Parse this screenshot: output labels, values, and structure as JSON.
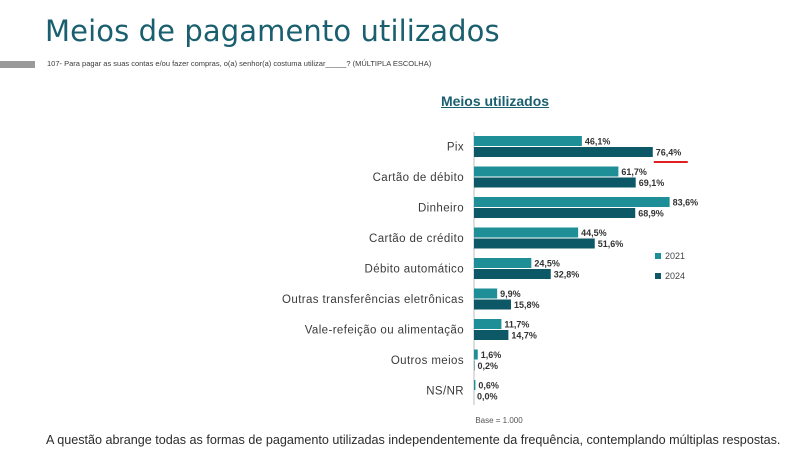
{
  "slide": {
    "title": "Meios de pagamento utilizados",
    "question": "107- Para pagar as suas contas e/ou fazer compras, o(a) senhor(a) costuma utilizar_____? (MÚLTIPLA ESCOLHA)",
    "base_note": "Base = 1.000",
    "footnote": "A questão abrange todas as formas de pagamento utilizadas independentemente da frequência, contemplando múltiplas respostas."
  },
  "colors": {
    "title": "#1a5f6f",
    "series_2021": "#1e8f96",
    "series_2024": "#0c5866",
    "highlight_underline": "#e02020",
    "accent_bar": "#9a9a9a"
  },
  "chart_data": {
    "type": "bar",
    "orientation": "horizontal",
    "title": "Meios utilizados",
    "categories": [
      "Pix",
      "Cartão de débito",
      "Dinheiro",
      "Cartão de crédito",
      "Débito automático",
      "Outras transferências eletrônicas",
      "Vale-refeição ou alimentação",
      "Outros meios",
      "NS/NR"
    ],
    "series": [
      {
        "name": "2021",
        "values": [
          46.1,
          61.7,
          83.6,
          44.5,
          24.5,
          9.9,
          11.7,
          1.6,
          0.6
        ],
        "labels": [
          "46,1%",
          "61,7%",
          "83,6%",
          "44,5%",
          "24,5%",
          "9,9%",
          "11,7%",
          "1,6%",
          "0,6%"
        ]
      },
      {
        "name": "2024",
        "values": [
          76.4,
          69.1,
          68.9,
          51.6,
          32.8,
          15.8,
          14.7,
          0.2,
          0.0
        ],
        "labels": [
          "76,4%",
          "69,1%",
          "68,9%",
          "51,6%",
          "32,8%",
          "15,8%",
          "14,7%",
          "0,2%",
          "0,0%"
        ]
      }
    ],
    "highlight": {
      "category": "Pix",
      "series": "2024",
      "style": "red underline"
    },
    "xlim": [
      0,
      100
    ],
    "grid": false,
    "legend_position": "right"
  }
}
